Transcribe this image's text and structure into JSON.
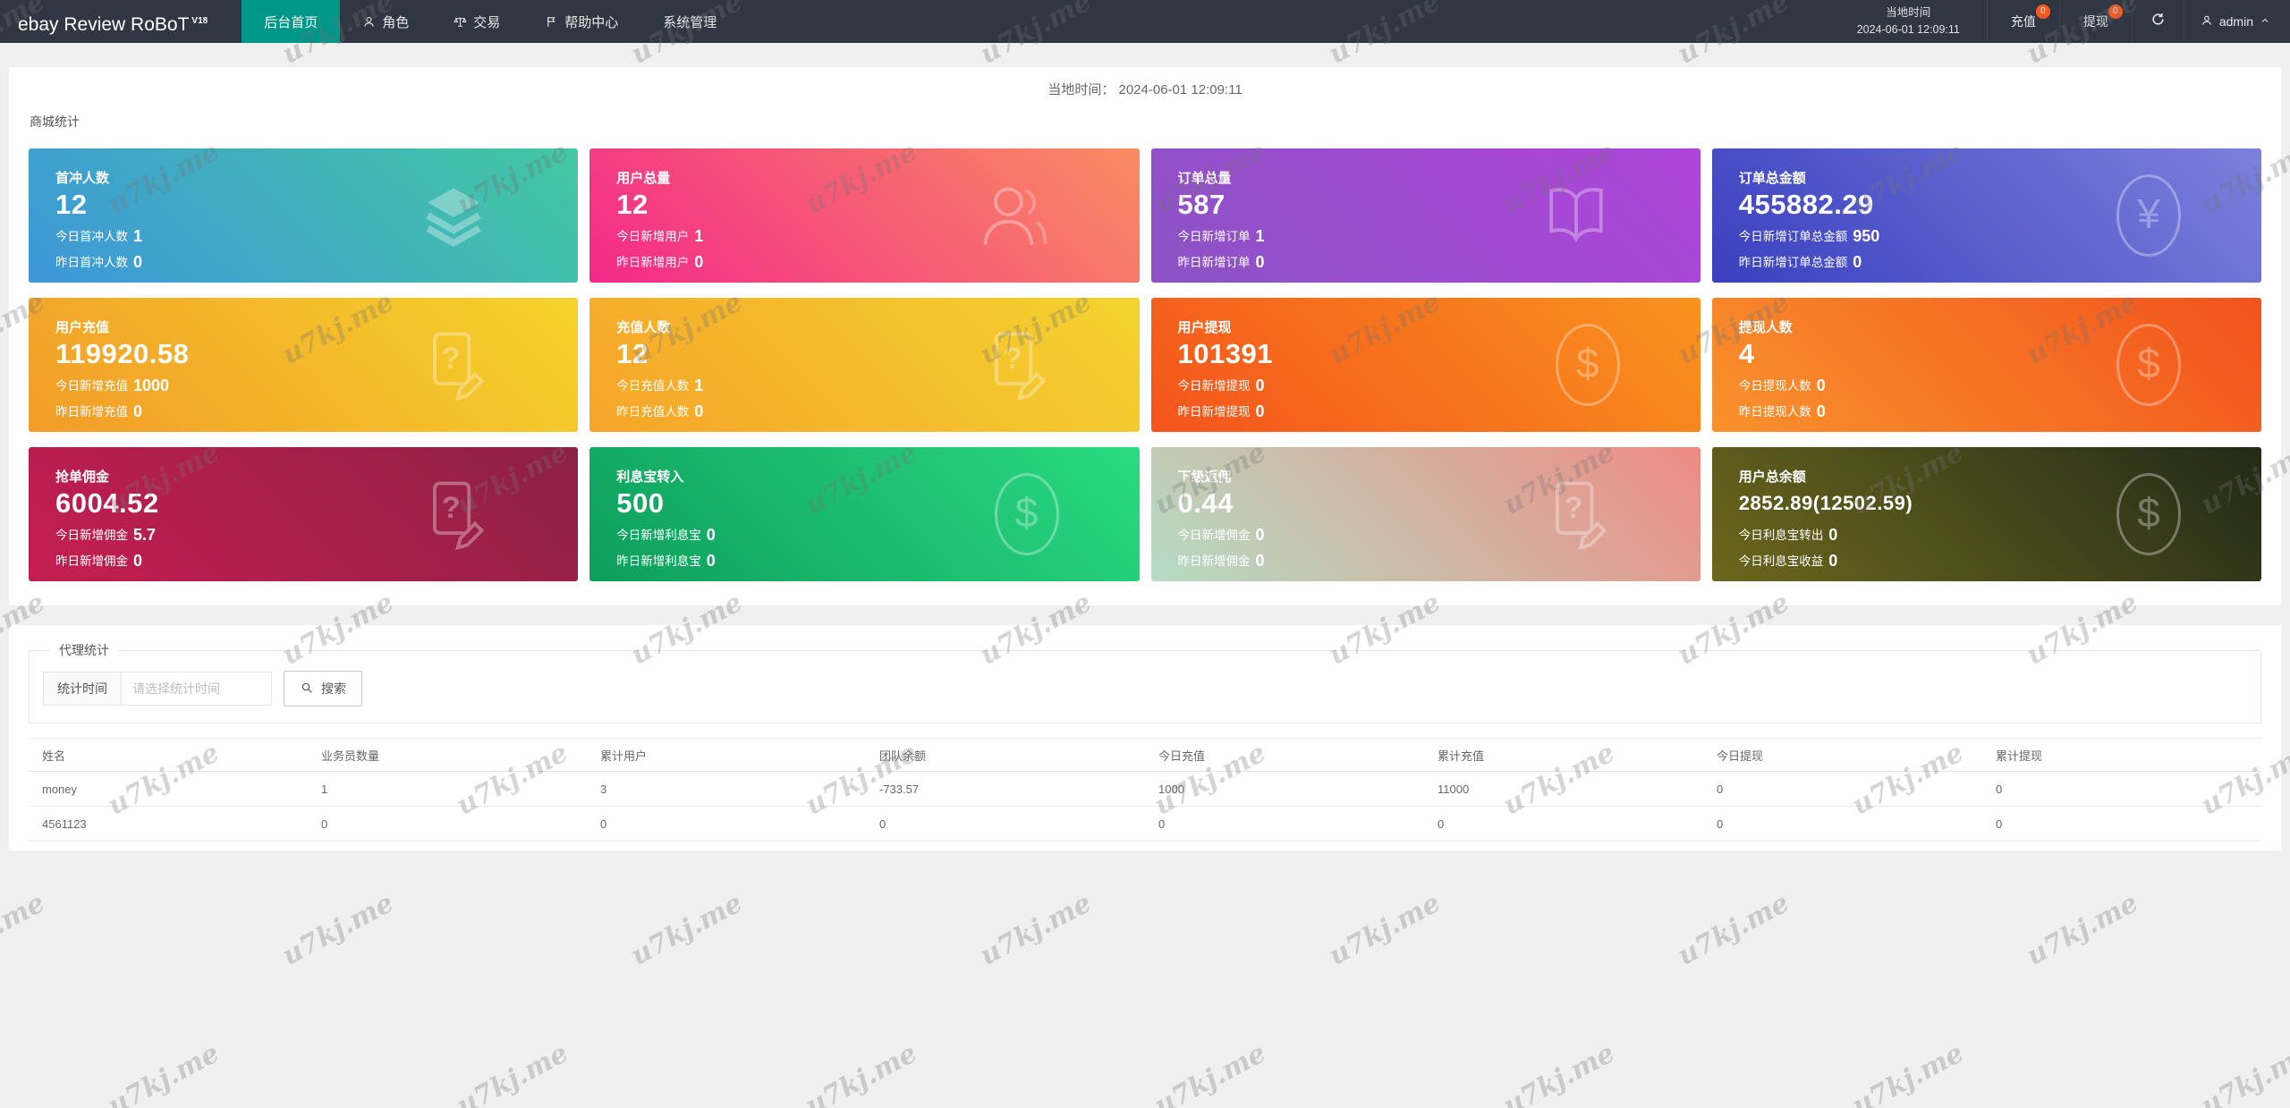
{
  "watermark": {
    "text": "u7kj.me"
  },
  "navbar": {
    "logo": "ebay Review RoBoT",
    "logo_sup": "V18",
    "menu": [
      {
        "label": "后台首页",
        "icon": "",
        "active": true
      },
      {
        "label": "角色",
        "icon": "person-icon",
        "active": false
      },
      {
        "label": "交易",
        "icon": "scales-icon",
        "active": false
      },
      {
        "label": "帮助中心",
        "icon": "flag-icon",
        "active": false
      },
      {
        "label": "系统管理",
        "icon": "",
        "active": false
      }
    ],
    "local_time_label": "当地时间",
    "local_time_value": "2024-06-01 12:09:11",
    "recharge": {
      "label": "充值",
      "badge": "0"
    },
    "withdraw": {
      "label": "提现",
      "badge": "0"
    },
    "user": "admin"
  },
  "header": {
    "local_time_label": "当地时间：",
    "local_time_value": "2024-06-01 12:09:11"
  },
  "stats": {
    "section_title": "商城统计",
    "cards": [
      {
        "title": "首冲人数",
        "value": "12",
        "line2_label": "今日首冲人数",
        "line2_value": "1",
        "line3_label": "昨日首冲人数",
        "line3_value": "0",
        "icon": "layers-icon",
        "gradient": [
          "#3E97D9",
          "#43C8A2"
        ]
      },
      {
        "title": "用户总量",
        "value": "12",
        "line2_label": "今日新增用户",
        "line2_value": "1",
        "line3_label": "昨日新增用户",
        "line3_value": "0",
        "icon": "users-icon",
        "gradient": [
          "#F3298A",
          "#F98D62"
        ]
      },
      {
        "title": "订单总量",
        "value": "587",
        "line2_label": "今日新增订单",
        "line2_value": "1",
        "line3_label": "昨日新增订单",
        "line3_value": "0",
        "icon": "book-icon",
        "gradient": [
          "#8B53C5",
          "#B044DB"
        ]
      },
      {
        "title": "订单总金额",
        "value": "455882.29",
        "line2_label": "今日新增订单总金额",
        "line2_value": "950",
        "line3_label": "昨日新增订单总金额",
        "line3_value": "0",
        "icon": "yen-circle-icon",
        "gradient": [
          "#3A40BF",
          "#7C81DC"
        ]
      },
      {
        "title": "用户充值",
        "value": "119920.58",
        "line2_label": "今日新增充值",
        "line2_value": "1000",
        "line3_label": "昨日新增充值",
        "line3_value": "0",
        "icon": "doc-question-icon",
        "gradient": [
          "#F29C29",
          "#F5D42B"
        ]
      },
      {
        "title": "充值人数",
        "value": "12",
        "line2_label": "今日充值人数",
        "line2_value": "1",
        "line3_label": "昨日充值人数",
        "line3_value": "0",
        "icon": "doc-question-icon",
        "gradient": [
          "#F6A42A",
          "#F3D42F"
        ]
      },
      {
        "title": "用户提现",
        "value": "101391",
        "line2_label": "今日新增提现",
        "line2_value": "0",
        "line3_label": "昨日新增提现",
        "line3_value": "0",
        "icon": "dollar-circle-icon",
        "gradient": [
          "#F4541C",
          "#F9931E"
        ]
      },
      {
        "title": "提现人数",
        "value": "4",
        "line2_label": "今日提现人数",
        "line2_value": "0",
        "line3_label": "昨日提现人数",
        "line3_value": "0",
        "icon": "dollar-circle-icon",
        "gradient": [
          "#F9922D",
          "#F2521C"
        ]
      },
      {
        "title": "抢单佣金",
        "value": "6004.52",
        "line2_label": "今日新增佣金",
        "line2_value": "5.7",
        "line3_label": "昨日新增佣金",
        "line3_value": "0",
        "icon": "doc-question-icon",
        "gradient": [
          "#C51E52",
          "#8C2045"
        ]
      },
      {
        "title": "利息宝转入",
        "value": "500",
        "line2_label": "今日新增利息宝",
        "line2_value": "0",
        "line3_label": "昨日新增利息宝",
        "line3_value": "0",
        "icon": "dollar-circle-icon",
        "gradient": [
          "#0D9E5C",
          "#2BDB82"
        ]
      },
      {
        "title": "下级返佣",
        "value": "0.44",
        "line2_label": "今日新增佣金",
        "line2_value": "0",
        "line3_label": "昨日新增佣金",
        "line3_value": "0",
        "icon": "doc-question-icon",
        "gradient": [
          "#B5DCC3",
          "#EE8B83"
        ]
      },
      {
        "title": "用户总余额",
        "value": "2852.89(12502.59)",
        "line2_label": "今日利息宝转出",
        "line2_value": "0",
        "line3_label": "今日利息宝收益",
        "line3_value": "0",
        "icon": "dollar-circle-icon",
        "gradient": [
          "#6C671D",
          "#222A18"
        ]
      }
    ]
  },
  "agent": {
    "section_title": "代理统计",
    "filter_label": "统计时间",
    "filter_placeholder": "请选择统计时间",
    "search_label": "搜索",
    "table": {
      "headers": [
        "姓名",
        "业务员数量",
        "累计用户",
        "团队余额",
        "今日充值",
        "累计充值",
        "今日提现",
        "累计提现"
      ],
      "rows": [
        [
          "money",
          "1",
          "3",
          "-733.57",
          "1000",
          "11000",
          "0",
          "0"
        ],
        [
          "4561123",
          "0",
          "0",
          "0",
          "0",
          "0",
          "0",
          "0"
        ]
      ]
    }
  }
}
